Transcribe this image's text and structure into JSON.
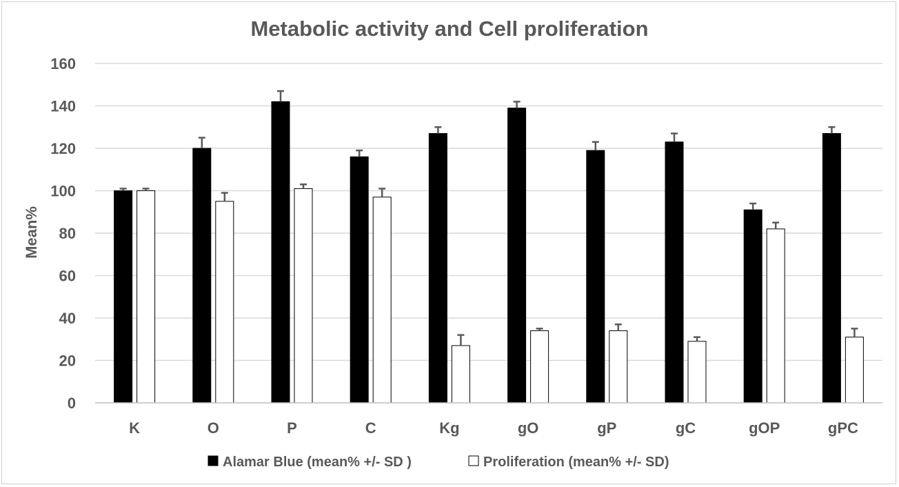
{
  "chart_data": {
    "type": "bar",
    "title": "Metabolic activity and Cell proliferation",
    "xlabel": "",
    "ylabel": "Mean%",
    "ylim": [
      0,
      160
    ],
    "yticks": [
      0,
      20,
      40,
      60,
      80,
      100,
      120,
      140,
      160
    ],
    "grid": true,
    "legend_position": "bottom",
    "categories": [
      "K",
      "O",
      "P",
      "C",
      "Kg",
      "gO",
      "gP",
      "gC",
      "gOP",
      "gPC"
    ],
    "series": [
      {
        "name": "Alamar Blue (mean% +/- SD )",
        "fill": "#000000",
        "values": [
          100,
          120,
          142,
          116,
          127,
          139,
          119,
          123,
          91,
          127
        ],
        "errors": [
          1,
          5,
          5,
          3,
          3,
          3,
          4,
          4,
          3,
          3
        ]
      },
      {
        "name": "Proliferation (mean% +/- SD)",
        "fill": "#ffffff",
        "values": [
          100,
          95,
          101,
          97,
          27,
          34,
          34,
          29,
          82,
          31
        ],
        "errors": [
          1,
          4,
          2,
          4,
          5,
          1,
          3,
          2,
          3,
          4
        ]
      }
    ]
  }
}
